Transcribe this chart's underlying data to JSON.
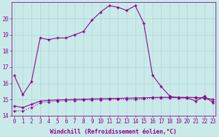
{
  "xlabel": "Windchill (Refroidissement éolien,°C)",
  "bg_color": "#caeaea",
  "grid_color": "#a8d4d4",
  "line_color": "#880088",
  "hours": [
    0,
    1,
    2,
    3,
    4,
    5,
    6,
    7,
    8,
    9,
    10,
    11,
    12,
    13,
    14,
    15,
    16,
    17,
    18,
    19,
    20,
    21,
    22,
    23
  ],
  "temp": [
    16.5,
    15.3,
    16.1,
    18.8,
    18.7,
    18.8,
    18.8,
    19.0,
    19.2,
    19.9,
    20.4,
    20.8,
    20.7,
    20.5,
    20.8,
    19.7,
    16.5,
    15.8,
    15.2,
    15.1,
    15.1,
    14.9,
    15.2,
    14.8
  ],
  "windchill1": [
    14.3,
    14.3,
    14.5,
    14.8,
    14.85,
    14.9,
    14.92,
    14.94,
    14.96,
    14.97,
    14.98,
    15.0,
    15.0,
    15.0,
    15.0,
    15.05,
    15.08,
    15.1,
    15.1,
    15.1,
    15.1,
    15.1,
    15.05,
    14.9
  ],
  "windchill2": [
    14.6,
    14.5,
    14.7,
    14.9,
    14.95,
    14.97,
    14.99,
    15.01,
    15.02,
    15.03,
    15.05,
    15.06,
    15.07,
    15.08,
    15.09,
    15.1,
    15.12,
    15.13,
    15.13,
    15.13,
    15.13,
    15.12,
    15.1,
    15.0
  ],
  "ylim": [
    14,
    21
  ],
  "yticks": [
    14,
    15,
    16,
    17,
    18,
    19,
    20
  ],
  "xticks": [
    0,
    1,
    2,
    3,
    4,
    5,
    6,
    7,
    8,
    9,
    10,
    11,
    12,
    13,
    14,
    15,
    16,
    17,
    18,
    19,
    20,
    21,
    22,
    23
  ],
  "markersize": 2.5,
  "linewidth": 0.8,
  "xlabel_fontsize": 6.0,
  "tick_fontsize": 5.5
}
